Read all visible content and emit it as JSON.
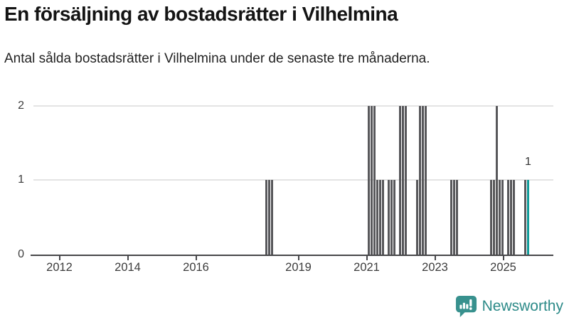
{
  "header": {
    "title": "En försäljning av bostadsrätter i Vilhelmina",
    "subtitle": "Antal sålda bostadsrätter i Vilhelmina under de senaste tre månaderna."
  },
  "chart_data": {
    "type": "bar",
    "title": "En försäljning av bostadsrätter i Vilhelmina",
    "subtitle": "Antal sålda bostadsrätter i Vilhelmina under de senaste tre månaderna.",
    "xlabel": "",
    "ylabel": "",
    "x_axis": {
      "tick_labels": [
        "2012",
        "2014",
        "2016",
        "2019",
        "2021",
        "2023",
        "2025"
      ]
    },
    "y_axis": {
      "tick_labels": [
        "0",
        "1",
        "2"
      ],
      "ticks": [
        0,
        1,
        2
      ],
      "ylim": [
        0,
        2
      ],
      "gridlines_at": [
        1,
        2
      ]
    },
    "unit": "sold condominiums per rolling 3-month period, monthly bars; unlisted months are 0",
    "points": [
      {
        "month": "2018-01",
        "value": 1
      },
      {
        "month": "2018-02",
        "value": 1
      },
      {
        "month": "2018-03",
        "value": 1
      },
      {
        "month": "2021-01",
        "value": 2
      },
      {
        "month": "2021-02",
        "value": 2
      },
      {
        "month": "2021-03",
        "value": 2
      },
      {
        "month": "2021-04",
        "value": 1
      },
      {
        "month": "2021-05",
        "value": 1
      },
      {
        "month": "2021-06",
        "value": 1
      },
      {
        "month": "2021-08",
        "value": 1
      },
      {
        "month": "2021-09",
        "value": 1
      },
      {
        "month": "2021-10",
        "value": 1
      },
      {
        "month": "2021-12",
        "value": 2
      },
      {
        "month": "2022-01",
        "value": 2
      },
      {
        "month": "2022-02",
        "value": 2
      },
      {
        "month": "2022-06",
        "value": 1
      },
      {
        "month": "2022-07",
        "value": 2
      },
      {
        "month": "2022-08",
        "value": 2
      },
      {
        "month": "2022-09",
        "value": 2
      },
      {
        "month": "2023-06",
        "value": 1
      },
      {
        "month": "2023-07",
        "value": 1
      },
      {
        "month": "2023-08",
        "value": 1
      },
      {
        "month": "2024-08",
        "value": 1
      },
      {
        "month": "2024-09",
        "value": 1
      },
      {
        "month": "2024-10",
        "value": 2
      },
      {
        "month": "2024-11",
        "value": 1
      },
      {
        "month": "2024-12",
        "value": 1
      },
      {
        "month": "2025-02",
        "value": 1
      },
      {
        "month": "2025-03",
        "value": 1
      },
      {
        "month": "2025-04",
        "value": 1
      },
      {
        "month": "2025-08",
        "value": 1
      },
      {
        "month": "2025-09",
        "value": 1
      }
    ],
    "highlight": {
      "month": "2025-09",
      "value_label": "1"
    },
    "colors": {
      "bar": "#58585b",
      "highlight": "#119c9a",
      "axis": "#47474a",
      "gridline": "#e4e4e4"
    },
    "legend": null
  },
  "footer": {
    "brand": "Newsworthy",
    "brand_color": "#2c8a88"
  }
}
